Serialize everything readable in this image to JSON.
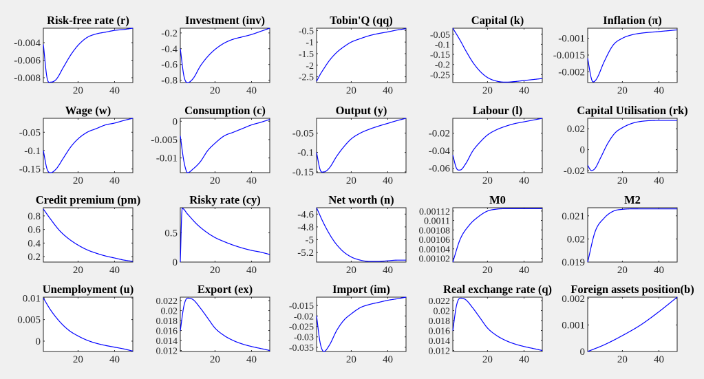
{
  "chart_data": [
    {
      "type": "line",
      "title": "Risk-free rate (r)",
      "xlim": [
        1,
        50
      ],
      "xticks": [
        20,
        40
      ],
      "ylim": [
        -0.00855,
        -0.00235
      ],
      "yticks": [
        -0.004,
        -0.006,
        -0.008
      ],
      "yticklabels": [
        "-0.004",
        "-0.006",
        "-0.008"
      ],
      "x": [
        1,
        3,
        5,
        8,
        12,
        16,
        20,
        25,
        30,
        35,
        40,
        45,
        50
      ],
      "y": [
        -0.0042,
        -0.008,
        -0.0085,
        -0.0082,
        -0.0068,
        -0.0054,
        -0.0043,
        -0.0034,
        -0.003,
        -0.0028,
        -0.0026,
        -0.0025,
        -0.00235
      ]
    },
    {
      "type": "line",
      "title": "Investment (inv)",
      "xlim": [
        1,
        50
      ],
      "xticks": [
        20,
        40
      ],
      "ylim": [
        -0.83,
        -0.14
      ],
      "yticks": [
        -0.2,
        -0.4,
        -0.6,
        -0.8
      ],
      "yticklabels": [
        "-0.2",
        "-0.4",
        "-0.6",
        "-0.8"
      ],
      "x": [
        1,
        3,
        5,
        8,
        12,
        16,
        20,
        25,
        30,
        35,
        40,
        45,
        50
      ],
      "y": [
        -0.4,
        -0.75,
        -0.83,
        -0.78,
        -0.62,
        -0.5,
        -0.41,
        -0.33,
        -0.28,
        -0.25,
        -0.22,
        -0.18,
        -0.14
      ]
    },
    {
      "type": "line",
      "title": "Tobin'Q (qq)",
      "xlim": [
        1,
        50
      ],
      "xticks": [
        20,
        40
      ],
      "ylim": [
        -2.75,
        -0.4
      ],
      "yticks": [
        -0.5,
        -1,
        -1.5,
        -2,
        -2.5
      ],
      "yticklabels": [
        "-0.5",
        "-1",
        "-1.5",
        "-2",
        "-2.5"
      ],
      "x": [
        1,
        3,
        5,
        8,
        12,
        16,
        20,
        25,
        30,
        35,
        40,
        45,
        50
      ],
      "y": [
        -2.7,
        -2.4,
        -2.15,
        -1.8,
        -1.45,
        -1.2,
        -1.0,
        -0.85,
        -0.72,
        -0.63,
        -0.56,
        -0.48,
        -0.42
      ]
    },
    {
      "type": "line",
      "title": "Capital (k)",
      "xlim": [
        1,
        50
      ],
      "xticks": [
        20,
        40
      ],
      "ylim": [
        -0.29,
        -0.02
      ],
      "yticks": [
        -0.05,
        -0.1,
        -0.15,
        -0.2,
        -0.25
      ],
      "yticklabels": [
        "-0.05",
        "-0.1",
        "-0.15",
        "-0.2",
        "-0.25"
      ],
      "x": [
        1,
        5,
        8,
        12,
        16,
        20,
        25,
        30,
        35,
        40,
        45,
        50
      ],
      "y": [
        -0.02,
        -0.08,
        -0.13,
        -0.19,
        -0.235,
        -0.265,
        -0.283,
        -0.288,
        -0.285,
        -0.28,
        -0.275,
        -0.27
      ]
    },
    {
      "type": "line",
      "title": "Inflation (π)",
      "xlim": [
        1,
        50
      ],
      "xticks": [
        20,
        40
      ],
      "ylim": [
        -0.00232,
        -0.0007
      ],
      "yticks": [
        -0.001,
        -0.0015,
        -0.002
      ],
      "yticklabels": [
        "-0.001",
        "-0.0015",
        "-0.002"
      ],
      "x": [
        1,
        3,
        4,
        6,
        10,
        15,
        20,
        25,
        30,
        40,
        50
      ],
      "y": [
        -0.0016,
        -0.0022,
        -0.0023,
        -0.0022,
        -0.0017,
        -0.0012,
        -0.001,
        -0.0009,
        -0.00085,
        -0.0008,
        -0.00075
      ]
    },
    {
      "type": "line",
      "title": "Wage (w)",
      "xlim": [
        1,
        50
      ],
      "xticks": [
        20,
        40
      ],
      "ylim": [
        -0.16,
        -0.012
      ],
      "yticks": [
        -0.05,
        -0.1,
        -0.15
      ],
      "yticklabels": [
        "-0.05",
        "-0.1",
        "-0.15"
      ],
      "x": [
        1,
        3,
        5,
        8,
        12,
        16,
        20,
        25,
        30,
        35,
        40,
        45,
        50
      ],
      "y": [
        -0.1,
        -0.15,
        -0.16,
        -0.15,
        -0.12,
        -0.09,
        -0.068,
        -0.05,
        -0.04,
        -0.03,
        -0.025,
        -0.018,
        -0.012
      ]
    },
    {
      "type": "line",
      "title": "Consumption (c)",
      "xlim": [
        1,
        50
      ],
      "xticks": [
        20,
        40
      ],
      "ylim": [
        -0.014,
        0.0008
      ],
      "yticks": [
        0,
        -0.005,
        -0.01
      ],
      "yticklabels": [
        "0",
        "-0.005",
        "-0.01"
      ],
      "x": [
        1,
        3,
        5,
        8,
        12,
        16,
        20,
        25,
        30,
        35,
        40,
        45,
        50
      ],
      "y": [
        -0.004,
        -0.011,
        -0.014,
        -0.013,
        -0.011,
        -0.008,
        -0.006,
        -0.004,
        -0.003,
        -0.002,
        -0.001,
        -0.0003,
        0.0005
      ]
    },
    {
      "type": "line",
      "title": "Output (y)",
      "xlim": [
        1,
        50
      ],
      "xticks": [
        20,
        40
      ],
      "ylim": [
        -0.152,
        -0.012
      ],
      "yticks": [
        -0.05,
        -0.1,
        -0.15
      ],
      "yticklabels": [
        "-0.05",
        "-0.1",
        "-0.15"
      ],
      "x": [
        1,
        3,
        5,
        8,
        12,
        16,
        20,
        25,
        30,
        35,
        40,
        45,
        50
      ],
      "y": [
        -0.1,
        -0.145,
        -0.15,
        -0.14,
        -0.11,
        -0.085,
        -0.065,
        -0.05,
        -0.04,
        -0.032,
        -0.025,
        -0.018,
        -0.012
      ]
    },
    {
      "type": "line",
      "title": "Labour (l)",
      "xlim": [
        1,
        50
      ],
      "xticks": [
        20,
        40
      ],
      "ylim": [
        -0.065,
        -0.003
      ],
      "yticks": [
        -0.02,
        -0.04,
        -0.06
      ],
      "yticklabels": [
        "-0.02",
        "-0.04",
        "-0.06"
      ],
      "x": [
        1,
        3,
        5,
        8,
        12,
        16,
        20,
        25,
        30,
        35,
        40,
        45,
        50
      ],
      "y": [
        -0.045,
        -0.06,
        -0.062,
        -0.055,
        -0.04,
        -0.03,
        -0.022,
        -0.016,
        -0.012,
        -0.009,
        -0.007,
        -0.005,
        -0.003
      ]
    },
    {
      "type": "line",
      "title": "Capital Utilisation (rk)",
      "xlim": [
        1,
        50
      ],
      "xticks": [
        20,
        40
      ],
      "ylim": [
        -0.022,
        0.03
      ],
      "yticks": [
        0.02,
        0,
        -0.02
      ],
      "yticklabels": [
        "0.02",
        "0",
        "-0.02"
      ],
      "x": [
        1,
        3,
        5,
        8,
        12,
        16,
        20,
        25,
        30,
        40,
        50
      ],
      "y": [
        -0.015,
        -0.02,
        -0.018,
        -0.008,
        0.006,
        0.016,
        0.021,
        0.025,
        0.027,
        0.028,
        0.028
      ]
    },
    {
      "type": "line",
      "title": "Credit premium (pm)",
      "xlim": [
        1,
        50
      ],
      "xticks": [
        20,
        40
      ],
      "ylim": [
        0.12,
        0.92
      ],
      "yticks": [
        0.2,
        0.4,
        0.6,
        0.8
      ],
      "yticklabels": [
        "0.2",
        "0.4",
        "0.6",
        "0.8"
      ],
      "x": [
        1,
        5,
        10,
        15,
        20,
        25,
        30,
        35,
        40,
        45,
        50
      ],
      "y": [
        0.9,
        0.75,
        0.58,
        0.46,
        0.37,
        0.3,
        0.25,
        0.21,
        0.18,
        0.15,
        0.13
      ]
    },
    {
      "type": "line",
      "title": "Risky rate (cy)",
      "xlim": [
        1,
        50
      ],
      "xticks": [
        20,
        40
      ],
      "ylim": [
        0,
        0.93
      ],
      "yticks": [
        0,
        0.5
      ],
      "yticklabels": [
        "0",
        "0.5"
      ],
      "x": [
        1,
        2,
        5,
        10,
        15,
        20,
        25,
        30,
        35,
        40,
        45,
        50
      ],
      "y": [
        0,
        0.92,
        0.82,
        0.65,
        0.52,
        0.42,
        0.35,
        0.29,
        0.24,
        0.2,
        0.17,
        0.13
      ]
    },
    {
      "type": "line",
      "title": "Net worth (n)",
      "xlim": [
        1,
        50
      ],
      "xticks": [
        20,
        40
      ],
      "ylim": [
        -5.35,
        -4.5
      ],
      "yticks": [
        -4.6,
        -4.8,
        -5,
        -5.2
      ],
      "yticklabels": [
        "-4.6",
        "-4.8",
        "-5",
        "-5.2"
      ],
      "x": [
        1,
        5,
        10,
        15,
        20,
        25,
        30,
        35,
        40,
        45,
        50
      ],
      "y": [
        -4.5,
        -4.75,
        -5.0,
        -5.17,
        -5.27,
        -5.32,
        -5.34,
        -5.34,
        -5.33,
        -5.32,
        -5.32
      ]
    },
    {
      "type": "line",
      "title": "M0",
      "xlim": [
        1,
        50
      ],
      "xticks": [
        20,
        40
      ],
      "ylim": [
        0.001012,
        0.001127
      ],
      "yticks": [
        0.00112,
        0.0011,
        0.00108,
        0.00106,
        0.00104,
        0.00102
      ],
      "yticklabels": [
        "0.00112",
        "0.0011",
        "0.00108",
        "0.00106",
        "0.00104",
        "0.00102"
      ],
      "x": [
        1,
        5,
        10,
        15,
        20,
        25,
        30,
        50
      ],
      "y": [
        0.001012,
        0.00106,
        0.00109,
        0.001108,
        0.00112,
        0.001124,
        0.001125,
        0.001125
      ]
    },
    {
      "type": "line",
      "title": "M2",
      "xlim": [
        1,
        50
      ],
      "xticks": [
        20,
        40
      ],
      "ylim": [
        0.019,
        0.02135
      ],
      "yticks": [
        0.019,
        0.02,
        0.021
      ],
      "yticklabels": [
        "0.019",
        "0.02",
        "0.021"
      ],
      "x": [
        1,
        5,
        10,
        15,
        20,
        30,
        50
      ],
      "y": [
        0.019,
        0.0203,
        0.0209,
        0.0212,
        0.02128,
        0.0213,
        0.0213
      ]
    },
    {
      "type": "line",
      "title": "Unemployment (u)",
      "xlim": [
        1,
        50
      ],
      "xticks": [
        20,
        40
      ],
      "ylim": [
        -0.0024,
        0.0102
      ],
      "yticks": [
        0.01,
        0.005,
        0
      ],
      "yticklabels": [
        "0.01",
        "0.005",
        "0"
      ],
      "x": [
        1,
        5,
        10,
        15,
        20,
        25,
        30,
        35,
        40,
        45,
        50
      ],
      "y": [
        0.01,
        0.0072,
        0.0045,
        0.0025,
        0.0012,
        0.0002,
        -0.0005,
        -0.001,
        -0.0014,
        -0.0018,
        -0.0023
      ]
    },
    {
      "type": "line",
      "title": "Export (ex)",
      "xlim": [
        1,
        50
      ],
      "xticks": [
        20,
        40
      ],
      "ylim": [
        0.0118,
        0.0227
      ],
      "yticks": [
        0.022,
        0.02,
        0.018,
        0.016,
        0.014,
        0.012
      ],
      "yticklabels": [
        "0.022",
        "0.02",
        "0.018",
        "0.016",
        "0.014",
        "0.012"
      ],
      "x": [
        1,
        3,
        5,
        8,
        12,
        16,
        20,
        25,
        30,
        35,
        40,
        45,
        50
      ],
      "y": [
        0.016,
        0.021,
        0.0225,
        0.0222,
        0.0205,
        0.0185,
        0.0165,
        0.015,
        0.014,
        0.0133,
        0.0128,
        0.0124,
        0.012
      ]
    },
    {
      "type": "line",
      "title": "Import (im)",
      "xlim": [
        1,
        50
      ],
      "xticks": [
        20,
        40
      ],
      "ylim": [
        -0.037,
        -0.011
      ],
      "yticks": [
        -0.015,
        -0.02,
        -0.025,
        -0.03,
        -0.035
      ],
      "yticklabels": [
        "-0.015",
        "-0.02",
        "-0.025",
        "-0.03",
        "-0.035"
      ],
      "x": [
        1,
        3,
        5,
        8,
        12,
        16,
        20,
        25,
        30,
        35,
        40,
        45,
        50
      ],
      "y": [
        -0.02,
        -0.033,
        -0.037,
        -0.034,
        -0.027,
        -0.022,
        -0.019,
        -0.016,
        -0.0145,
        -0.0135,
        -0.0125,
        -0.0118,
        -0.011
      ]
    },
    {
      "type": "line",
      "title": "Real exchange rate (q)",
      "xlim": [
        1,
        50
      ],
      "xticks": [
        20,
        40
      ],
      "ylim": [
        0.0118,
        0.0227
      ],
      "yticks": [
        0.022,
        0.02,
        0.018,
        0.016,
        0.014,
        0.012
      ],
      "yticklabels": [
        "0.022",
        "0.02",
        "0.018",
        "0.016",
        "0.014",
        "0.012"
      ],
      "x": [
        1,
        3,
        5,
        8,
        12,
        16,
        20,
        25,
        30,
        35,
        40,
        45,
        50
      ],
      "y": [
        0.016,
        0.021,
        0.0225,
        0.0222,
        0.0205,
        0.0185,
        0.0165,
        0.015,
        0.014,
        0.0133,
        0.0128,
        0.0124,
        0.012
      ]
    },
    {
      "type": "line",
      "title": "Foreign assets position(b)",
      "xlim": [
        1,
        50
      ],
      "xticks": [
        20,
        40
      ],
      "ylim": [
        0,
        0.00205
      ],
      "yticks": [
        0,
        0.001,
        0.002
      ],
      "yticklabels": [
        "0",
        "0.001",
        "0.002"
      ],
      "x": [
        1,
        10,
        20,
        30,
        40,
        50
      ],
      "y": [
        0,
        0.00025,
        0.0006,
        0.001,
        0.0015,
        0.00205
      ]
    }
  ],
  "colors": {
    "line": "#0000ff",
    "background": "#f0f0f0",
    "axes": "#ffffff"
  }
}
